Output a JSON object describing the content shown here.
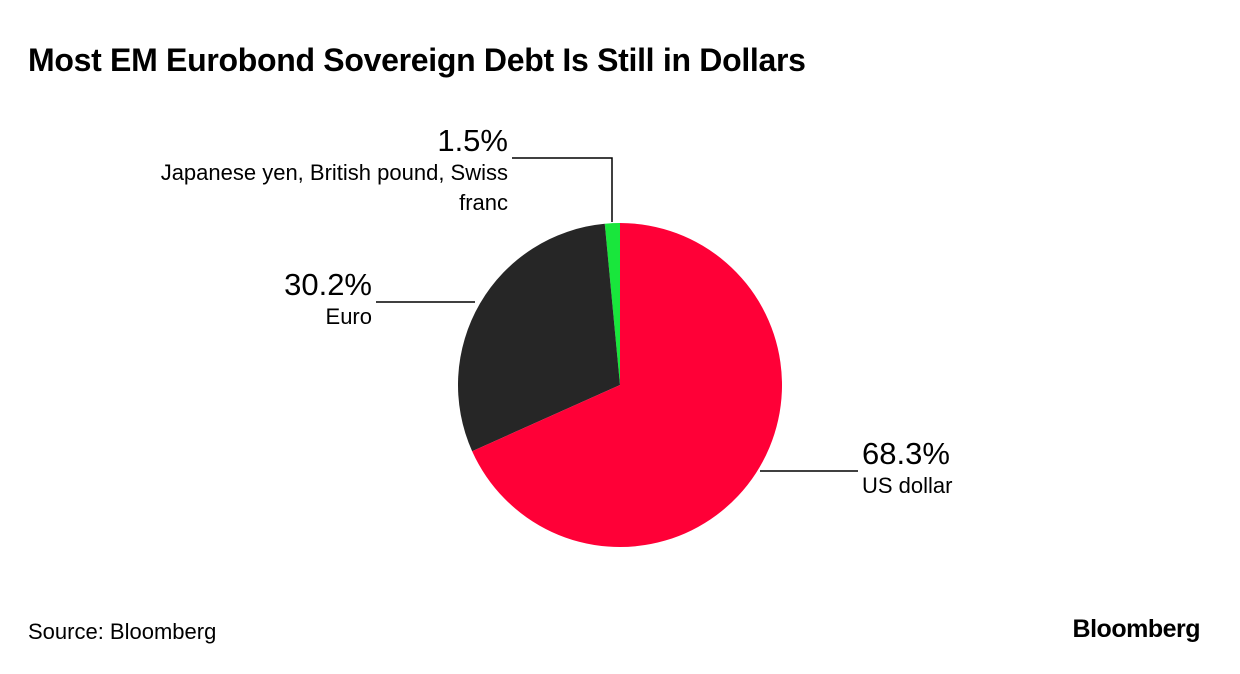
{
  "chart_data": {
    "type": "pie",
    "title": "Most EM Eurobond Sovereign Debt Is Still in Dollars",
    "categories": [
      "US dollar",
      "Euro",
      "Japanese yen, British pound, Swiss franc"
    ],
    "values": [
      68.3,
      30.2,
      1.5
    ],
    "value_labels": [
      "68.3%",
      "30.2%",
      "1.5%"
    ],
    "colors": [
      "#ff0037",
      "#262626",
      "#19e63c"
    ],
    "source": "Source: Bloomberg",
    "logo": "Bloomberg"
  }
}
